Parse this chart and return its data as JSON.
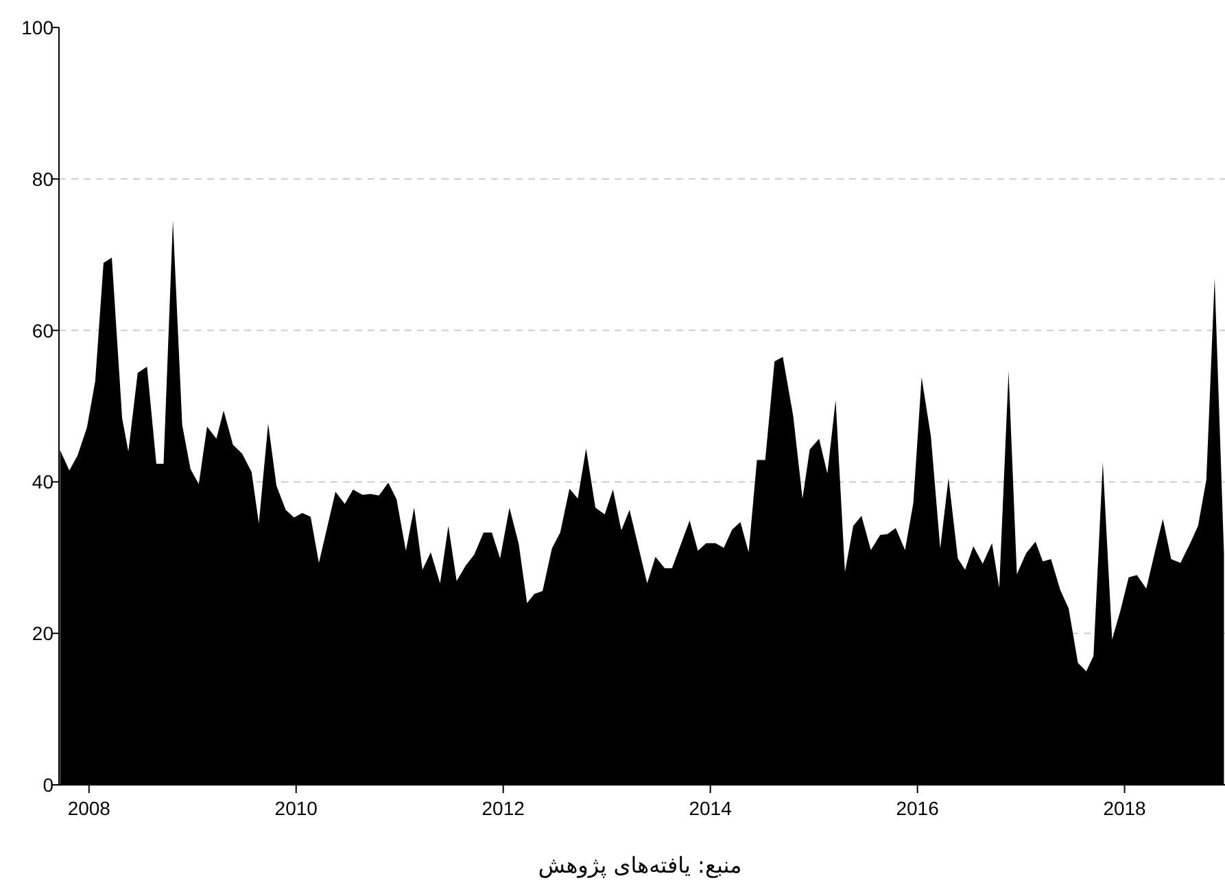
{
  "chart_data": {
    "type": "area",
    "x": [
      2007.72,
      2007.81,
      2007.89,
      2007.98,
      2008.06,
      2008.14,
      2008.22,
      2008.32,
      2008.38,
      2008.47,
      2008.56,
      2008.65,
      2008.72,
      2008.81,
      2008.9,
      2008.98,
      2009.06,
      2009.14,
      2009.23,
      2009.3,
      2009.39,
      2009.48,
      2009.57,
      2009.64,
      2009.73,
      2009.81,
      2009.9,
      2009.98,
      2010.06,
      2010.14,
      2010.22,
      2010.38,
      2010.47,
      2010.55,
      2010.64,
      2010.72,
      2010.8,
      2010.89,
      2010.97,
      2011.06,
      2011.14,
      2011.22,
      2011.3,
      2011.39,
      2011.47,
      2011.55,
      2011.64,
      2011.72,
      2011.81,
      2011.89,
      2011.97,
      2012.06,
      2012.15,
      2012.23,
      2012.3,
      2012.38,
      2012.47,
      2012.55,
      2012.64,
      2012.72,
      2012.8,
      2012.89,
      2012.98,
      2013.06,
      2013.14,
      2013.22,
      2013.39,
      2013.47,
      2013.56,
      2013.63,
      2013.8,
      2013.88,
      2013.96,
      2014.05,
      2014.13,
      2014.21,
      2014.29,
      2014.37,
      2014.45,
      2014.53,
      2014.62,
      2014.7,
      2014.8,
      2014.89,
      2014.96,
      2015.05,
      2015.13,
      2015.21,
      2015.3,
      2015.38,
      2015.46,
      2015.55,
      2015.64,
      2015.71,
      2015.79,
      2015.88,
      2015.96,
      2016.04,
      2016.13,
      2016.22,
      2016.3,
      2016.39,
      2016.46,
      2016.54,
      2016.63,
      2016.72,
      2016.79,
      2016.88,
      2016.96,
      2017.05,
      2017.14,
      2017.21,
      2017.29,
      2017.38,
      2017.46,
      2017.55,
      2017.63,
      2017.7,
      2017.79,
      2017.88,
      2017.96,
      2018.04,
      2018.12,
      2018.21,
      2018.29,
      2018.37,
      2018.45,
      2018.54,
      2018.63,
      2018.71,
      2018.79,
      2018.87,
      2018.96
    ],
    "series": [
      {
        "color": "#000000",
        "values": [
          44.2,
          41.5,
          43.5,
          47.2,
          53.3,
          68.9,
          69.6,
          48.4,
          44,
          54.4,
          55.2,
          42.4,
          42.4,
          74.5,
          47.5,
          41.7,
          39.7,
          47.3,
          45.7,
          49.4,
          44.9,
          43.7,
          41.3,
          34.5,
          47.7,
          39.5,
          36.3,
          35.3,
          35.9,
          35.4,
          29.3,
          38.7,
          37.1,
          39.0,
          38.3,
          38.4,
          38.2,
          39.9,
          37.7,
          30.9,
          36.6,
          28.4,
          30.7,
          26.6,
          34.2,
          26.9,
          29.0,
          30.4,
          33.3,
          33.3,
          29.9,
          36.6,
          31.8,
          24.0,
          25.2,
          25.6,
          31.2,
          33.3,
          39.1,
          37.8,
          44.4,
          36.6,
          35.7,
          39.0,
          33.6,
          36.3,
          26.6,
          30.1,
          28.6,
          28.6,
          34.9,
          30.9,
          31.9,
          31.9,
          31.3,
          33.7,
          34.7,
          30.7,
          42.9,
          42.9,
          55.9,
          56.5,
          48.7,
          37.8,
          44.3,
          45.7,
          41.1,
          50.8,
          28.1,
          34.2,
          35.5,
          31.0,
          33.0,
          33.1,
          33.9,
          31.0,
          37.2,
          53.8,
          46.0,
          31.2,
          40.5,
          29.9,
          28.4,
          31.5,
          29.2,
          31.9,
          26.0,
          54.6,
          27.8,
          30.6,
          32.1,
          29.5,
          29.8,
          25.7,
          23.3,
          16.1,
          15.0,
          17.0,
          42.6,
          19.2,
          23.0,
          27.4,
          27.7,
          25.9,
          30.6,
          35.1,
          29.8,
          29.3,
          31.8,
          34.2,
          40.3,
          66.9,
          30.6
        ]
      }
    ],
    "xlim": [
      2007.71,
      2018.97
    ],
    "xticks": [
      2008,
      2010,
      2012,
      2014,
      2016,
      2018
    ],
    "ylim": [
      0,
      100
    ],
    "yticks": [
      0,
      20,
      40,
      60,
      80,
      100
    ],
    "grid": "y",
    "annotations": [
      "منبع: یافته‌های پژوهش"
    ]
  }
}
